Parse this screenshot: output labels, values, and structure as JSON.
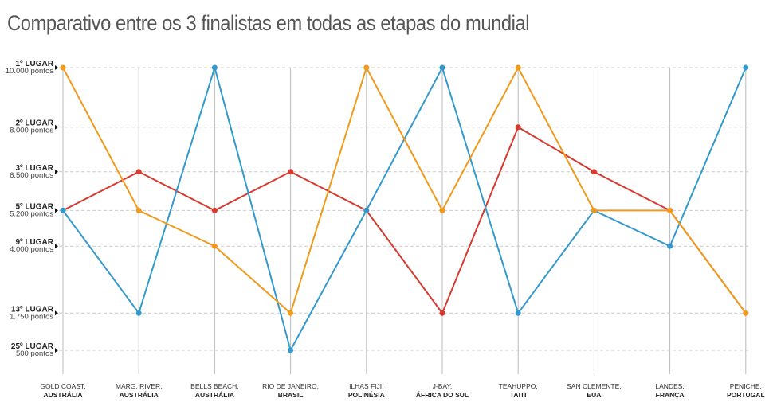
{
  "chart_data": {
    "type": "line",
    "title": "Comparativo entre os 3 finalistas em todas as etapas do mundial",
    "categories": [
      {
        "line1": "GOLD COAST,",
        "line2": "AUSTRÁLIA"
      },
      {
        "line1": "MARG. RIVER,",
        "line2": "AUSTRÁLIA"
      },
      {
        "line1": "BELLS BEACH,",
        "line2": "AUSTRÁLIA"
      },
      {
        "line1": "RIO DE JANEIRO,",
        "line2": "BRASIL"
      },
      {
        "line1": "ILHAS FIJI,",
        "line2": "POLINÉSIA"
      },
      {
        "line1": "J-BAY,",
        "line2": "ÁFRICA DO SUL"
      },
      {
        "line1": "TEAHUPPO,",
        "line2": "TAITI"
      },
      {
        "line1": "SAN CLEMENTE,",
        "line2": "EUA"
      },
      {
        "line1": "LANDES,",
        "line2": "FRANÇA"
      },
      {
        "line1": "PENICHE,",
        "line2": "PORTUGAL"
      }
    ],
    "yticks": [
      {
        "value": 10000,
        "place": "1º LUGAR",
        "points": "10.000 pontos"
      },
      {
        "value": 8000,
        "place": "2º LUGAR",
        "points": "8.000 pontos"
      },
      {
        "value": 6500,
        "place": "3º LUGAR",
        "points": "6.500 pontos"
      },
      {
        "value": 5200,
        "place": "5º LUGAR",
        "points": "5.200 pontos"
      },
      {
        "value": 4000,
        "place": "9º LUGAR",
        "points": "4.000 pontos"
      },
      {
        "value": 1750,
        "place": "13º LUGAR",
        "points": "1.750 pontos"
      },
      {
        "value": 500,
        "place": "25º LUGAR",
        "points": "500 pontos"
      }
    ],
    "ylim": [
      500,
      10000
    ],
    "grid": true,
    "series": [
      {
        "name": "red",
        "color": "#d63a2f",
        "values": [
          5200,
          6500,
          5200,
          6500,
          5200,
          1750,
          8000,
          6500,
          5200,
          1750
        ]
      },
      {
        "name": "blue",
        "color": "#3399cc",
        "values": [
          5200,
          1750,
          10000,
          500,
          5200,
          10000,
          1750,
          5200,
          4000,
          10000
        ]
      },
      {
        "name": "orange",
        "color": "#f09a1c",
        "values": [
          10000,
          5200,
          4000,
          1750,
          10000,
          5200,
          10000,
          5200,
          5200,
          1750
        ]
      }
    ]
  }
}
